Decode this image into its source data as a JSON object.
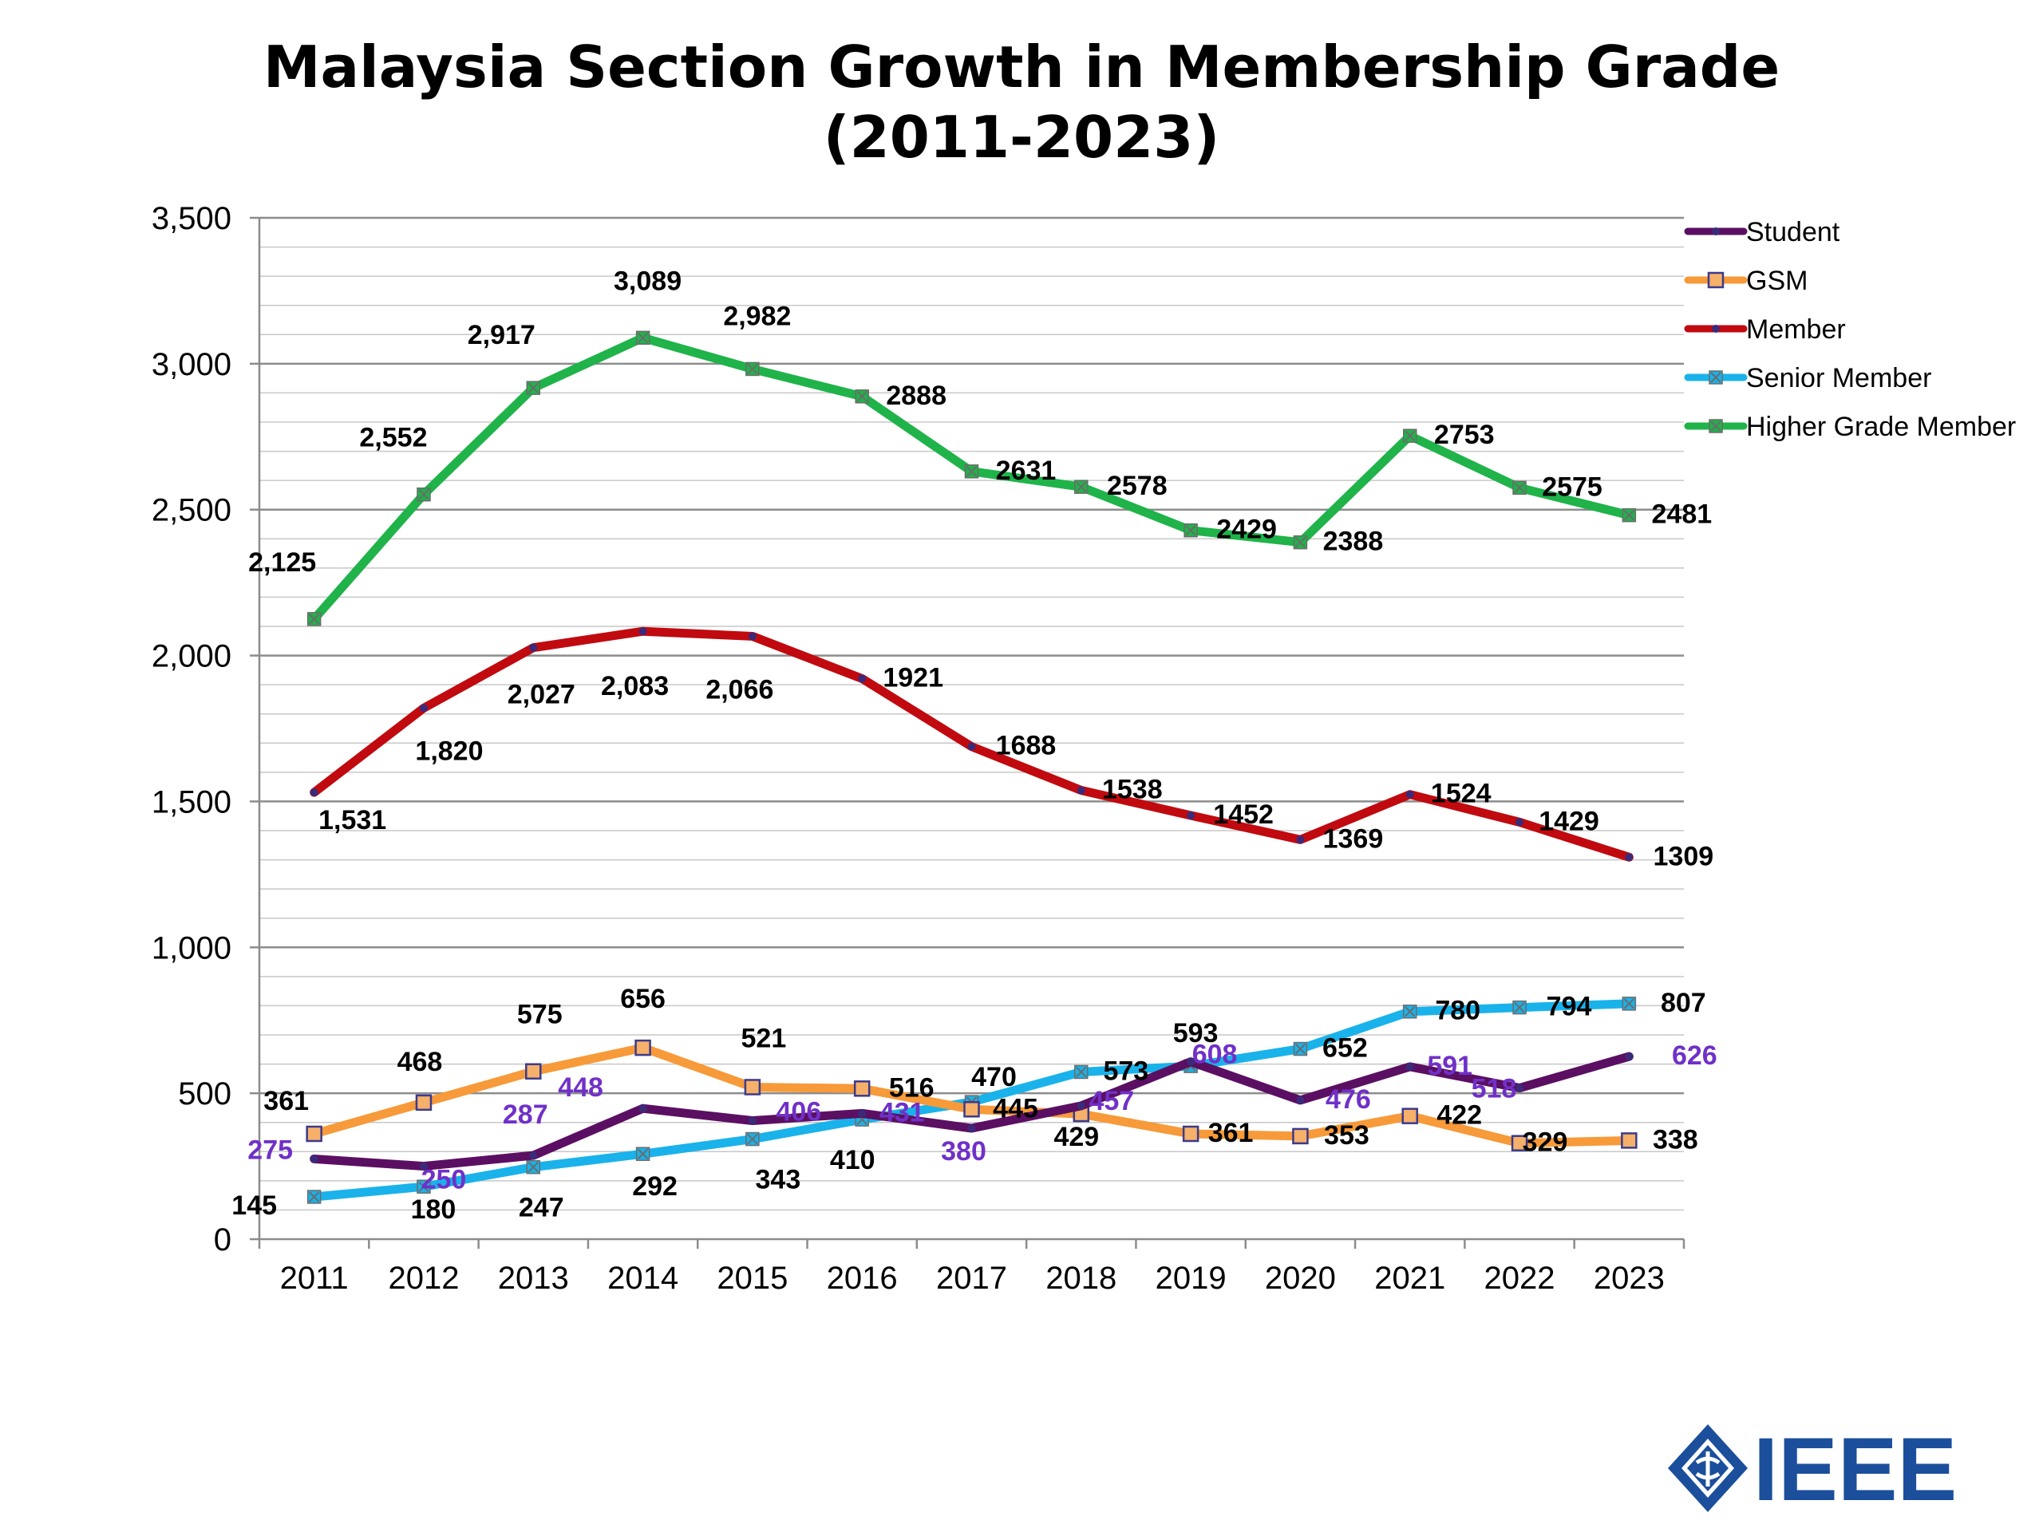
{
  "chart_data": {
    "type": "line",
    "title_line1": "Malaysia Section Growth in Membership Grade",
    "title_line2": "(2011-2023)",
    "xlabel": "",
    "ylabel": "",
    "categories": [
      "2011",
      "2012",
      "2013",
      "2014",
      "2015",
      "2016",
      "2017",
      "2018",
      "2019",
      "2020",
      "2021",
      "2022",
      "2023"
    ],
    "ylim": [
      0,
      3500
    ],
    "yticks": [
      0,
      500,
      1000,
      1500,
      2000,
      2500,
      3000,
      3500
    ],
    "ytick_labels": [
      "0",
      "500",
      "1,000",
      "1,500",
      "2,000",
      "2,500",
      "3,000",
      "3,500"
    ],
    "grid": true,
    "legend_position": "top-right",
    "series": [
      {
        "name": "Student",
        "color": "#5b0f62",
        "marker": "dot",
        "values": [
          275,
          250,
          287,
          448,
          406,
          431,
          380,
          457,
          608,
          476,
          591,
          518,
          626
        ],
        "labels": [
          "275",
          "250",
          "287",
          "448",
          "406",
          "431",
          "380",
          "457",
          "608",
          "476",
          "591",
          "518",
          "626"
        ],
        "label_color": "#7030c8"
      },
      {
        "name": "GSM",
        "color": "#f79a3a",
        "marker": "square",
        "values": [
          361,
          468,
          575,
          656,
          521,
          516,
          445,
          429,
          361,
          353,
          422,
          329,
          338
        ],
        "labels": [
          "361",
          "468",
          "575",
          "656",
          "521",
          "516",
          "445",
          "429",
          "361",
          "353",
          "422",
          "329",
          "338"
        ],
        "label_color": "#000000"
      },
      {
        "name": "Member",
        "color": "#c00a0f",
        "marker": "dot",
        "values": [
          1531,
          1820,
          2027,
          2083,
          2066,
          1921,
          1688,
          1538,
          1452,
          1369,
          1524,
          1429,
          1309
        ],
        "labels": [
          "1,531",
          "1,820",
          "2,027",
          "2,083",
          "2,066",
          "1921",
          "1688",
          "1538",
          "1452",
          "1369",
          "1524",
          "1429",
          "1309"
        ],
        "label_color": "#000000"
      },
      {
        "name": "Senior Member",
        "color": "#1ab2ea",
        "marker": "x",
        "values": [
          145,
          180,
          247,
          292,
          343,
          410,
          470,
          573,
          593,
          652,
          780,
          794,
          807
        ],
        "labels": [
          "145",
          "180",
          "247",
          "292",
          "343",
          "410",
          "470",
          "573",
          "593",
          "652",
          "780",
          "794",
          "807"
        ],
        "label_color": "#000000"
      },
      {
        "name": "Higher Grade Member",
        "color": "#1fb34a",
        "marker": "x",
        "values": [
          2125,
          2552,
          2917,
          3089,
          2982,
          2888,
          2631,
          2578,
          2429,
          2388,
          2753,
          2575,
          2481
        ],
        "labels": [
          "2,125",
          "2,552",
          "2,917",
          "3,089",
          "2,982",
          "2888",
          "2631",
          "2578",
          "2429",
          "2388",
          "2753",
          "2575",
          "2481"
        ],
        "label_color": "#000000"
      }
    ]
  },
  "logo": {
    "text": "IEEE",
    "color": "#1b4f9c"
  }
}
